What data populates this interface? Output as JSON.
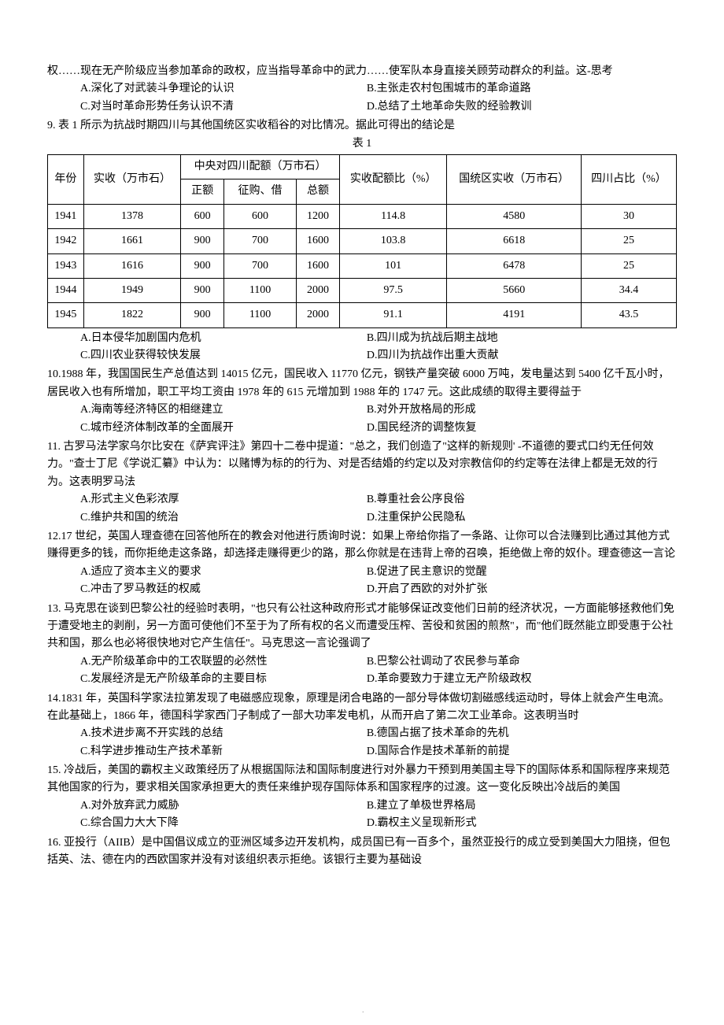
{
  "lead_in": {
    "line1": "权……现在无产阶级应当参加革命的政权，应当指导革命中的武力……使军队本身直接关顾劳动群众的利益。这-思考",
    "optA": "A.深化了对武装斗争理论的认识",
    "optB": "B.主张走农村包围城市的革命道路",
    "optC": "C.对当时革命形势任务认识不清",
    "optD": "D.总结了土地革命失败的经验教训"
  },
  "q9": {
    "stem": "9.  表 1 所示为抗战时期四川与其他国统区实收稻谷的对比情况。据此可得出的结论是",
    "caption": "表 1",
    "headers": {
      "year": "年份",
      "shishou": "实收（万市石）",
      "central": "中央对四川配额（万市石）",
      "zheng": "正额",
      "zhenggou": "征购、借",
      "zong": "总额",
      "ratio": "实收配额比（%）",
      "guotong": "国统区实收（万市石）",
      "sichuan": "四川占比（%）"
    },
    "rows": [
      {
        "year": "1941",
        "shishou": "1378",
        "zheng": "600",
        "zhenggou": "600",
        "zong": "1200",
        "ratio": "114.8",
        "guotong": "4580",
        "sichuan": "30"
      },
      {
        "year": "1942",
        "shishou": "1661",
        "zheng": "900",
        "zhenggou": "700",
        "zong": "1600",
        "ratio": "103.8",
        "guotong": "6618",
        "sichuan": "25"
      },
      {
        "year": "1943",
        "shishou": "1616",
        "zheng": "900",
        "zhenggou": "700",
        "zong": "1600",
        "ratio": "101",
        "guotong": "6478",
        "sichuan": "25"
      },
      {
        "year": "1944",
        "shishou": "1949",
        "zheng": "900",
        "zhenggou": "1100",
        "zong": "2000",
        "ratio": "97.5",
        "guotong": "5660",
        "sichuan": "34.4"
      },
      {
        "year": "1945",
        "shishou": "1822",
        "zheng": "900",
        "zhenggou": "1100",
        "zong": "2000",
        "ratio": "91.1",
        "guotong": "4191",
        "sichuan": "43.5"
      }
    ],
    "optA": "A.日本侵华加剧国内危机",
    "optB": "B.四川成为抗战后期主战地",
    "optC": "C.四川农业获得较快发展",
    "optD": "D.四川为抗战作出重大贡献"
  },
  "q10": {
    "stem": "10.1988 年，我国国民生产总值达到 14015 亿元，国民收入 11770 亿元，钢铁产量突破 6000 万吨，发电量达到 5400 亿千瓦小时，居民收入也有所增加，职工平均工资由 1978 年的 615 元增加到 1988 年的 1747 元。这此成绩的取得主要得益于",
    "optA": "A.海南等经济特区的相继建立",
    "optB": "B.对外开放格局的形成",
    "optC": "C.城市经济体制改革的全面展开",
    "optD": "D.国民经济的调整恢复"
  },
  "q11": {
    "stem": "11.  古罗马法学家乌尔比安在《萨宾评注》第四十二卷中提道：\"总之，我们创造了\"这样的新规则' -不道德的要式口约无任何效力。\"查士丁尼《学说汇纂》中认为：以赌博为标的的行为、对是否结婚的约定以及对宗教信仰的约定等在法律上都是无效的行为。这表明罗马法",
    "optA": "A.形式主义色彩浓厚",
    "optB": "B.尊重社会公序良俗",
    "optC": "C.维护共和国的统治",
    "optD": "D.注重保护公民隐私"
  },
  "q12": {
    "stem": "12.17 世纪，英国人理查德在回答他所在的教会对他进行质询时说：如果上帝给你指了一条路、让你可以合法赚到比通过其他方式赚得更多的钱，而你拒绝走这条路，却选择走赚得更少的路，那么你就是在违背上帝的召唤，拒绝做上帝的奴仆。理查德这一言论",
    "optA": "A.适应了资本主义的要求",
    "optB": "B.促进了民主意识的觉醒",
    "optC": "C.冲击了罗马教廷的权威",
    "optD": "D.开启了西欧的对外扩张"
  },
  "q13": {
    "stem": "13.  马克思在谈到巴黎公社的经验时表明，\"也只有公社这种政府形式才能够保证改变他们日前的经济状况，一方面能够拯救他们免于遭受地主的剥削，另一方面可使他们不至于为了所有权的名义而遭受压榨、苦役和贫困的煎熬\"，而\"他们既然能立即受惠于公社共和国，那么也必将很快地对它产生信任\"。马克思这一言论强调了",
    "optA": "A.无产阶级革命中的工农联盟的必然性",
    "optB": "B.巴黎公社调动了农民参与革命",
    "optC": "C.发展经济是无产阶级革命的主要目标",
    "optD": "D.革命要致力于建立无产阶级政权"
  },
  "q14": {
    "stem": "14.1831 年，英国科学家法拉第发现了电磁感应现象，原理是闭合电路的一部分导体做切割磁感线运动时，导体上就会产生电流。在此基础上，1866 年，德国科学家西门子制成了一部大功率发电机，从而开启了第二次工业革命。这表明当时",
    "optA": "A.技术进步离不开实践的总结",
    "optB": "B.德国占据了技术革命的先机",
    "optC": "C.科学进步推动生产技术革新",
    "optD": "D.国际合作是技术革新的前提"
  },
  "q15": {
    "stem": "  15.  冷战后，美国的霸权主义政策经历了从根据国际法和国际制度进行对外暴力干预到用美国主导下的国际体系和国际程序来规范其他国家的行为，要求相关国家承担更大的责任来维护现存国际体系和国家程序的过渡。这一变化反映出冷战后的美国",
    "optA": "A.对外放弃武力威胁",
    "optB": "B.建立了单极世界格局",
    "optC": "C.综合国力大大下降",
    "optD": "D.霸权主义呈现新形式"
  },
  "q16": {
    "stem": "  16.  亚投行（AIIB）是中国倡议成立的亚洲区域多边开发机构，成员国已有一百多个，虽然亚投行的成立受到美国大力阻挠，但包括英、法、德在内的西欧国家并没有对该组织表示拒绝。该银行主要为基础设"
  },
  "table_style": {
    "border_color": "#000000",
    "col_widths_pct": [
      10,
      10,
      9,
      12,
      9,
      14,
      16,
      20
    ]
  }
}
